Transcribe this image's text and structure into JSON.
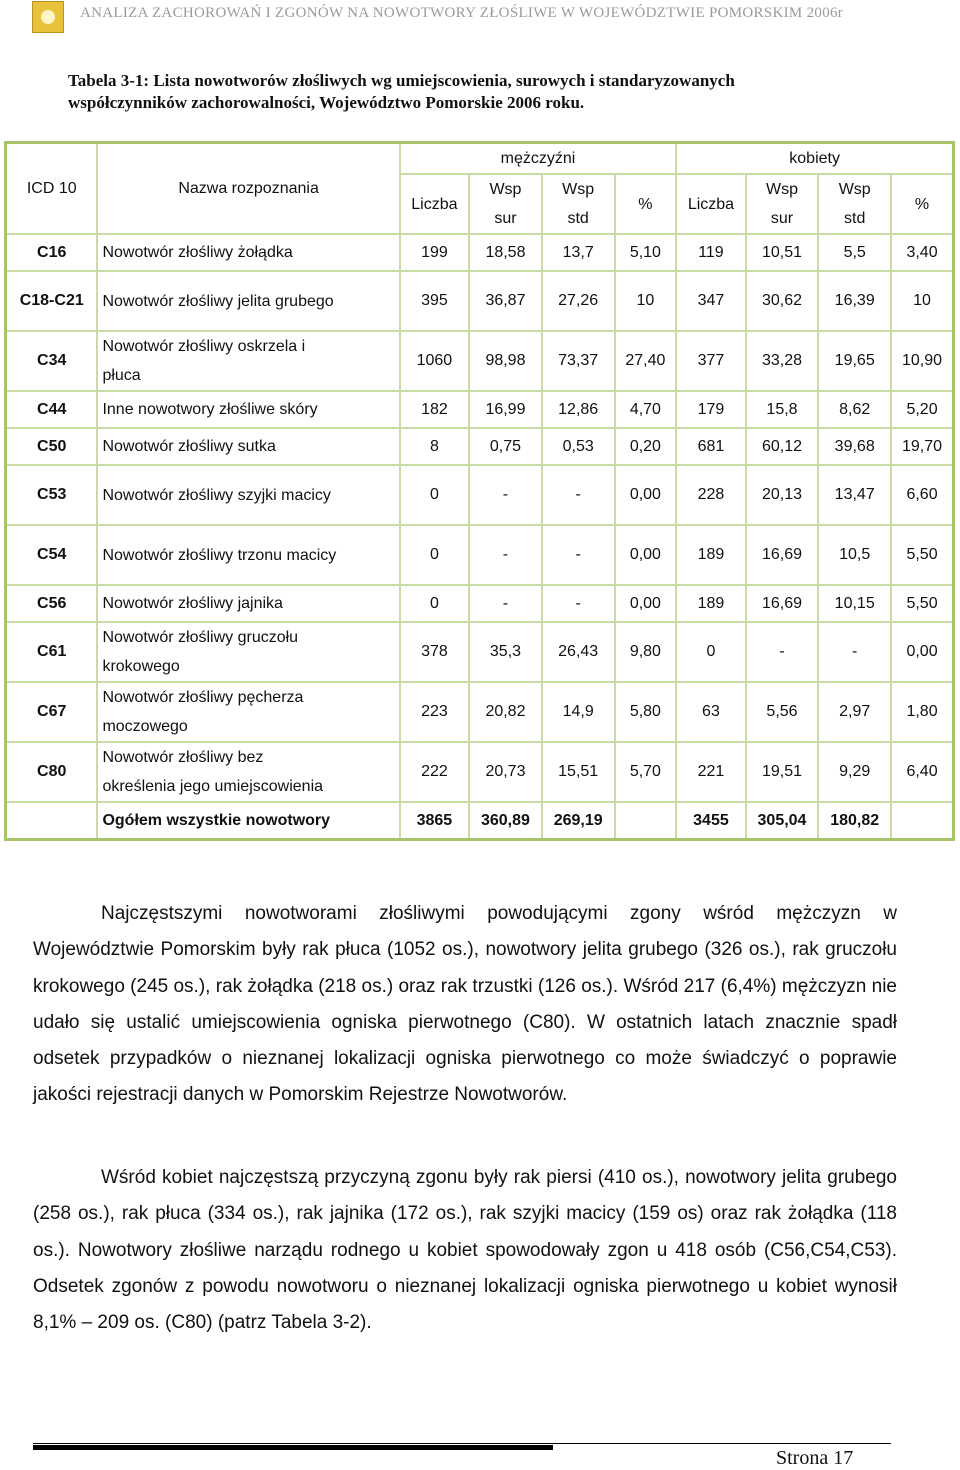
{
  "header": {
    "title": "ANALIZA ZACHOROWAŃ I ZGONÓW NA NOWOTWORY ZŁOŚLIWE W WOJEWÓDZTWIE POMORSKIM 2006r"
  },
  "caption": "Tabela 3-1: Lista nowotworów złośliwych wg umiejscowienia, surowych i standaryzowanych współczynników zachorowalności, Województwo Pomorskie 2006 roku.",
  "table": {
    "group_headers": [
      "mężczyźni",
      "kobiety"
    ],
    "columns": [
      "ICD 10",
      "Nazwa rozpoznania",
      "Liczba",
      "Wsp\nsur",
      "Wsp\nstd",
      "%",
      "Liczba",
      "Wsp\nsur",
      "Wsp\nstd",
      "%"
    ],
    "rows": [
      [
        "C16",
        "Nowotwór złośliwy żołądka",
        "199",
        "18,58",
        "13,7",
        "5,10",
        "119",
        "10,51",
        "5,5",
        "3,40"
      ],
      [
        "C18-C21",
        "Nowotwór złośliwy jelita grubego",
        "395",
        "36,87",
        "27,26",
        "10",
        "347",
        "30,62",
        "16,39",
        "10"
      ],
      [
        "C34",
        "Nowotwór złośliwy oskrzela i płuca",
        "1060",
        "98,98",
        "73,37",
        "27,40",
        "377",
        "33,28",
        "19,65",
        "10,90"
      ],
      [
        "C44",
        "Inne nowotwory złośliwe skóry",
        "182",
        "16,99",
        "12,86",
        "4,70",
        "179",
        "15,8",
        "8,62",
        "5,20"
      ],
      [
        "C50",
        "Nowotwór złośliwy sutka",
        "8",
        "0,75",
        "0,53",
        "0,20",
        "681",
        "60,12",
        "39,68",
        "19,70"
      ],
      [
        "C53",
        "Nowotwór złośliwy szyjki macicy",
        "0",
        "-",
        "-",
        "0,00",
        "228",
        "20,13",
        "13,47",
        "6,60"
      ],
      [
        "C54",
        "Nowotwór złośliwy trzonu macicy",
        "0",
        "-",
        "-",
        "0,00",
        "189",
        "16,69",
        "10,5",
        "5,50"
      ],
      [
        "C56",
        "Nowotwór złośliwy jajnika",
        "0",
        "-",
        "-",
        "0,00",
        "189",
        "16,69",
        "10,15",
        "5,50"
      ],
      [
        "C61",
        "Nowotwór złośliwy gruczołu krokowego",
        "378",
        "35,3",
        "26,43",
        "9,80",
        "0",
        "-",
        "-",
        "0,00"
      ],
      [
        "C67",
        "Nowotwór złośliwy pęcherza moczowego",
        "223",
        "20,82",
        "14,9",
        "5,80",
        "63",
        "5,56",
        "2,97",
        "1,80"
      ],
      [
        "C80",
        "Nowotwór złośliwy bez określenia jego umiejscowienia",
        "222",
        "20,73",
        "15,51",
        "5,70",
        "221",
        "19,51",
        "9,29",
        "6,40"
      ]
    ],
    "total": {
      "label": "Ogółem wszystkie nowotwory",
      "men": [
        "3865",
        "360,89",
        "269,19"
      ],
      "women": [
        "3455",
        "305,04",
        "180,82"
      ]
    }
  },
  "paragraphs": [
    "Najczęstszymi nowotworami złośliwymi powodującymi zgony wśród mężczyzn w Województwie Pomorskim były rak płuca (1052 os.), nowotwory jelita grubego (326 os.), rak gruczołu krokowego (245 os.), rak żołądka (218 os.) oraz rak trzustki (126 os.). Wśród 217 (6,4%) mężczyzn nie udało się ustalić umiejscowienia ogniska pierwotnego (C80). W ostatnich latach znacznie spadł odsetek przypadków o nieznanej lokalizacji ogniska pierwotnego co może świadczyć o poprawie jakości rejestracji danych w Pomorskim Rejestrze Nowotworów.",
    "Wśród kobiet najczęstszą przyczyną zgonu były rak piersi (410 os.), nowotwory jelita grubego (258 os.), rak płuca (334 os.), rak jajnika (172 os.), rak szyjki macicy (159 os) oraz rak żołądka (118 os.). Nowotwory złośliwe narządu rodnego u kobiet spowodowały zgon u 418 osób (C56,C54,C53). Odsetek zgonów z powodu nowotworu o nieznanej lokalizacji ogniska pierwotnego u kobiet wynosił 8,1% – 209 os. (C80) (patrz Tabela 3-2)."
  ],
  "footer": {
    "page": "Strona 17"
  }
}
